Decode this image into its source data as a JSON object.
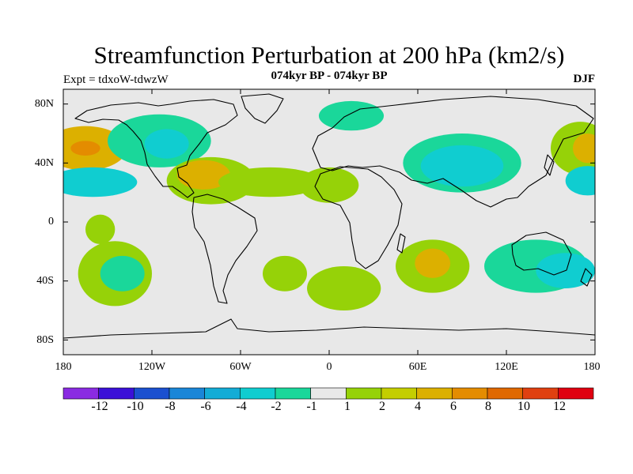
{
  "title": "Streamfunction Perturbation at 200 hPa (km2/s)",
  "subtitle": "074kyr BP - 074kyr BP",
  "expt_label": "Expt = tdxoW-tdwzW",
  "season": "DJF",
  "lat_ticks": [
    "80N",
    "40N",
    "0",
    "40S",
    "80S"
  ],
  "lon_ticks": [
    "180",
    "120W",
    "60W",
    "0",
    "60E",
    "120E",
    "180"
  ],
  "colorbar": {
    "colors": [
      "#8a2be2",
      "#3b10d8",
      "#1b50d0",
      "#1a86d8",
      "#13acd6",
      "#10cdd0",
      "#1ad79a",
      "#e8e8e8",
      "#96d208",
      "#c4ce00",
      "#dcb000",
      "#e48c00",
      "#e06800",
      "#e04010",
      "#e00010"
    ],
    "labels": [
      "-12",
      "-10",
      "-8",
      "-6",
      "-4",
      "-2",
      "-1",
      "1",
      "2",
      "4",
      "6",
      "8",
      "10",
      "12"
    ]
  },
  "chart_data": {
    "type": "map",
    "projection": "cylindrical-equidistant",
    "region": {
      "lon_range": [
        -180,
        180
      ],
      "lat_range": [
        -90,
        90
      ]
    },
    "variable": "streamfunction perturbation at 200 hPa",
    "units": "km2/s",
    "background_color": "#e8e8e8",
    "features": [
      {
        "center": [
          -165,
          50
        ],
        "radii": [
          28,
          15
        ],
        "shade": "#dcb000"
      },
      {
        "center": [
          -165,
          50
        ],
        "radii": [
          10,
          5
        ],
        "shade": "#e48c00"
      },
      {
        "center": [
          -160,
          27
        ],
        "radii": [
          30,
          10
        ],
        "shade": "#10cdd0"
      },
      {
        "center": [
          -155,
          -5
        ],
        "radii": [
          10,
          10
        ],
        "shade": "#96d208"
      },
      {
        "center": [
          -115,
          55
        ],
        "radii": [
          35,
          18
        ],
        "shade": "#1ad79a"
      },
      {
        "center": [
          -110,
          53
        ],
        "radii": [
          15,
          10
        ],
        "shade": "#10cdd0"
      },
      {
        "center": [
          -80,
          28
        ],
        "radii": [
          30,
          16
        ],
        "shade": "#96d208"
      },
      {
        "center": [
          -85,
          32
        ],
        "radii": [
          18,
          10
        ],
        "shade": "#dcb000"
      },
      {
        "center": [
          -40,
          27
        ],
        "radii": [
          35,
          10
        ],
        "shade": "#96d208"
      },
      {
        "center": [
          0,
          25
        ],
        "radii": [
          20,
          12
        ],
        "shade": "#96d208"
      },
      {
        "center": [
          -145,
          -35
        ],
        "radii": [
          25,
          22
        ],
        "shade": "#96d208"
      },
      {
        "center": [
          -140,
          -35
        ],
        "radii": [
          15,
          12
        ],
        "shade": "#1ad79a"
      },
      {
        "center": [
          -30,
          -35
        ],
        "radii": [
          15,
          12
        ],
        "shade": "#96d208"
      },
      {
        "center": [
          10,
          -45
        ],
        "radii": [
          25,
          15
        ],
        "shade": "#96d208"
      },
      {
        "center": [
          70,
          -30
        ],
        "radii": [
          25,
          18
        ],
        "shade": "#96d208"
      },
      {
        "center": [
          70,
          -28
        ],
        "radii": [
          12,
          10
        ],
        "shade": "#dcb000"
      },
      {
        "center": [
          90,
          40
        ],
        "radii": [
          40,
          20
        ],
        "shade": "#1ad79a"
      },
      {
        "center": [
          90,
          38
        ],
        "radii": [
          28,
          14
        ],
        "shade": "#10cdd0"
      },
      {
        "center": [
          15,
          72
        ],
        "radii": [
          22,
          10
        ],
        "shade": "#1ad79a"
      },
      {
        "center": [
          140,
          -30
        ],
        "radii": [
          35,
          18
        ],
        "shade": "#1ad79a"
      },
      {
        "center": [
          160,
          -33
        ],
        "radii": [
          20,
          12
        ],
        "shade": "#10cdd0"
      },
      {
        "center": [
          170,
          50
        ],
        "radii": [
          20,
          18
        ],
        "shade": "#96d208"
      },
      {
        "center": [
          175,
          50
        ],
        "radii": [
          10,
          10
        ],
        "shade": "#dcb000"
      },
      {
        "center": [
          175,
          28
        ],
        "radii": [
          15,
          10
        ],
        "shade": "#10cdd0"
      }
    ]
  }
}
